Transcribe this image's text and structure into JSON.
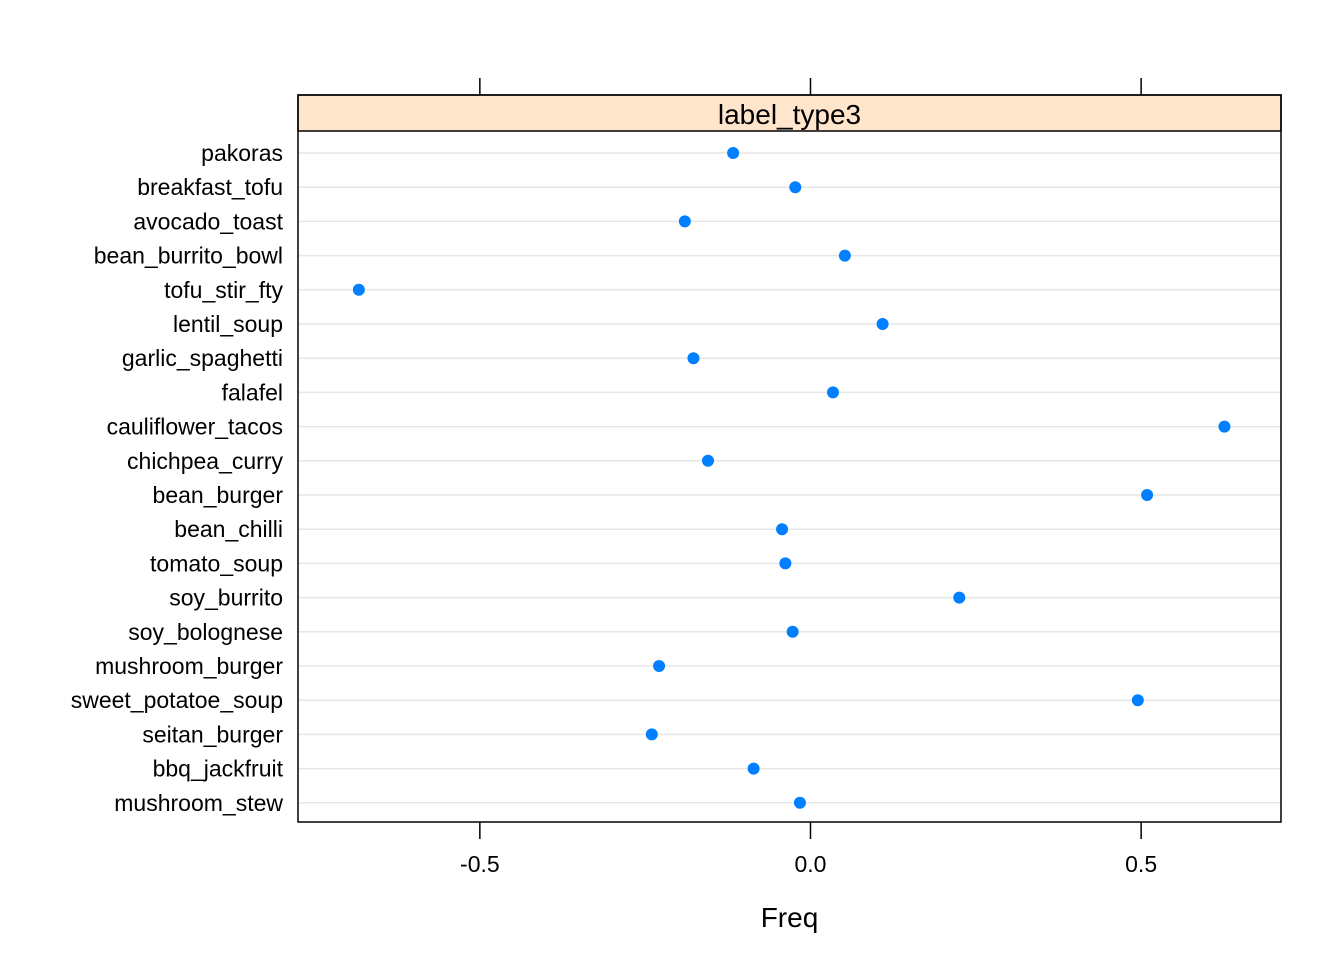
{
  "chart_data": {
    "type": "scatter",
    "strip_label": "label_type3",
    "xlabel": "Freq",
    "ylabel": "",
    "xlim": [
      -0.775,
      0.7115
    ],
    "x_ticks": [
      -0.5,
      0.0,
      0.5
    ],
    "x_tick_labels": [
      "-0.5",
      "0.0",
      "0.5"
    ],
    "grid": true,
    "categories": [
      "pakoras",
      "breakfast_tofu",
      "avocado_toast",
      "bean_burrito_bowl",
      "tofu_stir_fty",
      "lentil_soup",
      "garlic_spaghetti",
      "falafel",
      "cauliflower_tacos",
      "chichpea_curry",
      "bean_burger",
      "bean_chilli",
      "tomato_soup",
      "soy_burrito",
      "soy_bolognese",
      "mushroom_burger",
      "sweet_potatoe_soup",
      "seitan_burger",
      "bbq_jackfruit",
      "mushroom_stew"
    ],
    "values": [
      -0.117,
      -0.023,
      -0.19,
      0.052,
      -0.683,
      0.109,
      -0.177,
      0.034,
      0.626,
      -0.155,
      0.509,
      -0.043,
      -0.038,
      0.225,
      -0.027,
      -0.229,
      0.495,
      -0.24,
      -0.086,
      -0.016
    ],
    "colors": {
      "point": "#0080FF",
      "strip": "#FFE5CC",
      "grid": "#E6E6E6",
      "frame": "#000000"
    }
  }
}
